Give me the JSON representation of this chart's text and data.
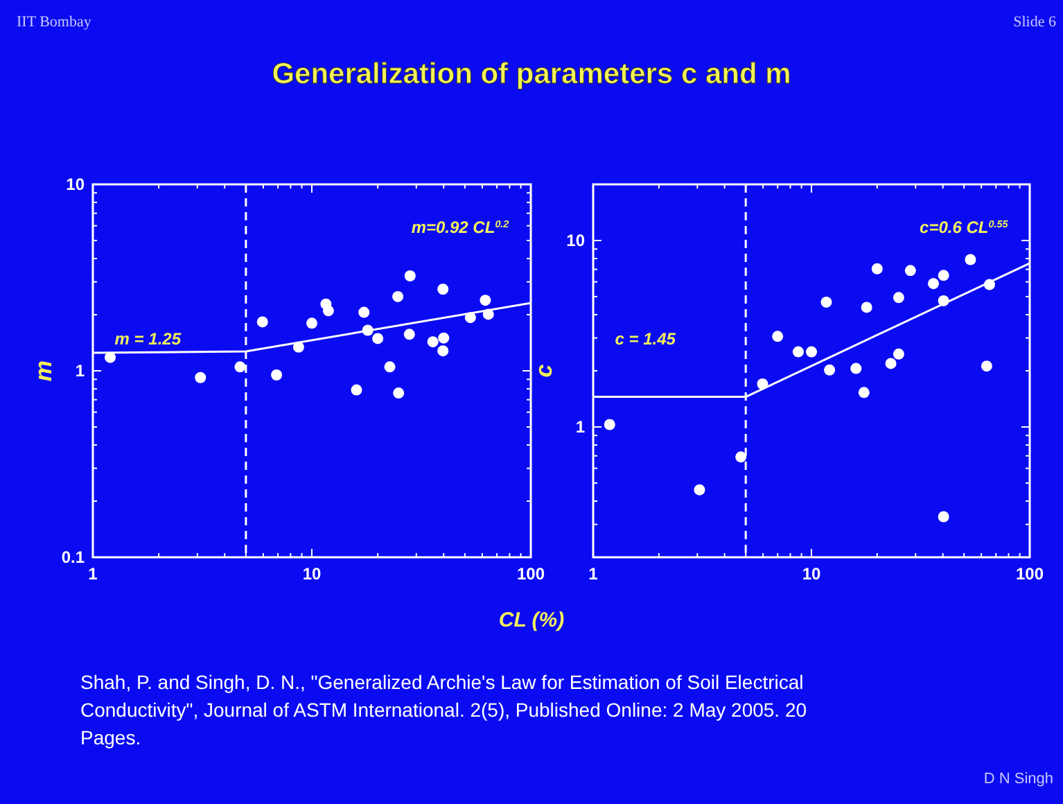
{
  "chart_data": [
    {
      "type": "scatter",
      "title": "Generalization of parameters c and m",
      "xlabel": "CL (%)",
      "ylabel": "m",
      "log": "xy",
      "grid": false,
      "marker": "circle",
      "xlim": [
        1,
        100
      ],
      "xticks": [
        1,
        {
          "value": 2,
          "label": null
        },
        {
          "value": 3,
          "label": null
        },
        {
          "value": 4,
          "label": null
        },
        {
          "value": 5,
          "label": null
        },
        {
          "value": 6,
          "label": null
        },
        {
          "value": 7,
          "label": null
        },
        {
          "value": 8,
          "label": null
        },
        {
          "value": 9,
          "label": null
        },
        10,
        {
          "value": 20,
          "label": null
        },
        {
          "value": 30,
          "label": null
        },
        {
          "value": 40,
          "label": null
        },
        {
          "value": 50,
          "label": null
        },
        {
          "value": 60,
          "label": null
        },
        {
          "value": 70,
          "label": null
        },
        {
          "value": 80,
          "label": null
        },
        {
          "value": 90,
          "label": null
        },
        100
      ],
      "ylim": [
        0.1,
        10
      ],
      "yticks": [
        0.1,
        {
          "value": 0.2,
          "label": null
        },
        {
          "value": 0.3,
          "label": null
        },
        {
          "value": 0.4,
          "label": null
        },
        {
          "value": 0.5,
          "label": null
        },
        {
          "value": 0.6,
          "label": null
        },
        {
          "value": 0.7,
          "label": null
        },
        {
          "value": 0.8,
          "label": null
        },
        {
          "value": 0.9,
          "label": null
        },
        1,
        {
          "value": 2,
          "label": null
        },
        {
          "value": 3,
          "label": null
        },
        {
          "value": 4,
          "label": null
        },
        {
          "value": 5,
          "label": null
        },
        {
          "value": 6,
          "label": null
        },
        {
          "value": 7,
          "label": null
        },
        {
          "value": 8,
          "label": null
        },
        {
          "value": 9,
          "label": null
        },
        10
      ],
      "series": [
        {
          "color": "#ffffff",
          "x": [
            1.2,
            3.1,
            4.7,
            5.95,
            6.9,
            8.7,
            10,
            11.6,
            11.9,
            16,
            17.3,
            18,
            20,
            22.7,
            24.7,
            24.9,
            28.1,
            27.9,
            35.7,
            39.7,
            40,
            39.7,
            53,
            62,
            64
          ],
          "values": [
            1.18,
            0.92,
            1.05,
            1.83,
            0.95,
            1.34,
            1.8,
            2.28,
            2.1,
            0.79,
            2.06,
            1.65,
            1.49,
            1.05,
            2.5,
            0.76,
            3.23,
            1.57,
            1.43,
            2.74,
            1.5,
            1.28,
            1.93,
            2.39,
            2.01
          ]
        },
        {
          "type": "line",
          "color": "#ffffff",
          "line_style": "solid",
          "marker": "none",
          "x": [
            1,
            5,
            100
          ],
          "values": [
            1.25,
            1.27,
            2.31
          ]
        }
      ],
      "ref_lines": [
        {
          "axis": "x",
          "value": 5,
          "color": "#ffffff",
          "line_style": "dashed"
        }
      ],
      "annotations": [
        "m = 1.25",
        "m=0.92 CL$^{0.2}$",
        "IIT Bombay",
        "Slide 6",
        "Shah, P. and Singh, D. N., \"Generalized Archie's Law for Estimation of Soil Electrical Conductivity\", Journal of ASTM International. 2(5), Published Online: 2 May 2005. 20 Pages.",
        "D N Singh"
      ]
    },
    {
      "type": "scatter",
      "ylabel": "c",
      "log": "xy",
      "grid": false,
      "marker": "circle",
      "xlim": [
        1,
        100
      ],
      "xticks": [
        1,
        {
          "value": 2,
          "label": null
        },
        {
          "value": 3,
          "label": null
        },
        {
          "value": 4,
          "label": null
        },
        {
          "value": 5,
          "label": null
        },
        {
          "value": 6,
          "label": null
        },
        {
          "value": 7,
          "label": null
        },
        {
          "value": 8,
          "label": null
        },
        {
          "value": 9,
          "label": null
        },
        10,
        {
          "value": 20,
          "label": null
        },
        {
          "value": 30,
          "label": null
        },
        {
          "value": 40,
          "label": null
        },
        {
          "value": 50,
          "label": null
        },
        {
          "value": 60,
          "label": null
        },
        {
          "value": 70,
          "label": null
        },
        {
          "value": 80,
          "label": null
        },
        {
          "value": 90,
          "label": null
        },
        100
      ],
      "ylim": [
        0.2,
        20
      ],
      "yticks": [
        {
          "value": 0.2,
          "label": null
        },
        {
          "value": 0.3,
          "label": null
        },
        {
          "value": 0.4,
          "label": null
        },
        {
          "value": 0.5,
          "label": null
        },
        {
          "value": 0.6,
          "label": null
        },
        {
          "value": 0.7,
          "label": null
        },
        {
          "value": 0.8,
          "label": null
        },
        {
          "value": 0.9,
          "label": null
        },
        1,
        {
          "value": 2,
          "label": null
        },
        {
          "value": 3,
          "label": null
        },
        {
          "value": 4,
          "label": null
        },
        {
          "value": 5,
          "label": null
        },
        {
          "value": 6,
          "label": null
        },
        {
          "value": 7,
          "label": null
        },
        {
          "value": 8,
          "label": null
        },
        {
          "value": 9,
          "label": null
        },
        10,
        {
          "value": 20,
          "label": null
        }
      ],
      "series": [
        {
          "color": "#ffffff",
          "x": [
            1.19,
            3.07,
            4.75,
            5.97,
            7,
            8.7,
            10,
            11.7,
            12.1,
            16,
            17.4,
            17.9,
            20,
            23.1,
            25.1,
            25.1,
            28.4,
            36.2,
            40.3,
            40.3,
            40.3,
            53.5,
            63.5,
            65.4
          ],
          "values": [
            1.03,
            0.46,
            0.69,
            1.7,
            3.06,
            2.53,
            2.53,
            4.67,
            2.02,
            2.06,
            1.53,
            4.38,
            7.05,
            2.19,
            2.46,
            4.94,
            6.9,
            5.87,
            6.5,
            4.75,
            0.33,
            7.9,
            2.12,
            5.8
          ]
        },
        {
          "type": "line",
          "color": "#ffffff",
          "line_style": "solid",
          "marker": "none",
          "x": [
            1,
            5,
            100
          ],
          "values": [
            1.45,
            1.45,
            7.55
          ]
        }
      ],
      "ref_lines": [
        {
          "axis": "x",
          "value": 5,
          "color": "#ffffff",
          "line_style": "dashed"
        }
      ],
      "annotations": [
        "c = 1.45",
        "c=0.6 CL$^{0.55}$"
      ]
    }
  ]
}
